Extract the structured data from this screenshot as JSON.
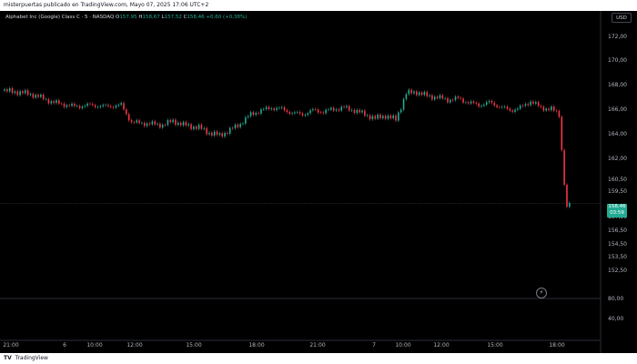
{
  "header": {
    "text": "misterpuertas publicado en TradingView.com, Mayo 07, 2025 17:06 UTC+2"
  },
  "symbol": {
    "name": "Alphabet Inc (Google) Class C · 5 · NASDAQ",
    "o_label": "O",
    "o": "157,95",
    "h_label": "H",
    "h": "158,67",
    "l_label": "L",
    "l": "157,52",
    "c_label": "C",
    "c": "158,46",
    "change": "+0,60 (+0,38%)"
  },
  "currency": "USD",
  "price_tag": {
    "price": "158,46",
    "countdown": "03:59"
  },
  "footer": {
    "logo": "TV",
    "brand": "TradingView"
  },
  "colors": {
    "up": "#22ab94",
    "down": "#f23645",
    "bg": "#000000",
    "text": "#b2b5be",
    "grid": "#1e222d"
  },
  "chart_data": {
    "type": "candlestick",
    "price_axis_labels": [
      "172,00",
      "170,00",
      "168,00",
      "166,00",
      "164,00",
      "162,00",
      "160,50",
      "159,50",
      "157,50",
      "156,50",
      "154,50",
      "153,50",
      "152,50",
      "80,00",
      "40,00"
    ],
    "time_axis_labels": [
      "21:00",
      "6",
      "10:00",
      "12:00",
      "15:00",
      "18:00",
      "21:00",
      "7",
      "10:00",
      "12:00",
      "15:00",
      "18:00"
    ],
    "ylim": [
      151.5,
      172.5
    ],
    "last_price": 158.46,
    "price_series": [
      {
        "t": 0,
        "p": 167.0
      },
      {
        "t": 6,
        "p": 166.9
      },
      {
        "t": 12,
        "p": 166.7
      },
      {
        "t": 16,
        "p": 166.4
      },
      {
        "t": 20,
        "p": 166.1
      },
      {
        "t": 28,
        "p": 165.8
      },
      {
        "t": 34,
        "p": 165.9
      },
      {
        "t": 40,
        "p": 165.8
      },
      {
        "t": 46,
        "p": 165.9
      },
      {
        "t": 50,
        "p": 164.6
      },
      {
        "t": 56,
        "p": 164.5
      },
      {
        "t": 62,
        "p": 164.4
      },
      {
        "t": 66,
        "p": 164.7
      },
      {
        "t": 70,
        "p": 164.4
      },
      {
        "t": 76,
        "p": 164.2
      },
      {
        "t": 80,
        "p": 163.8
      },
      {
        "t": 84,
        "p": 163.6
      },
      {
        "t": 88,
        "p": 164.0
      },
      {
        "t": 92,
        "p": 164.5
      },
      {
        "t": 96,
        "p": 165.2
      },
      {
        "t": 100,
        "p": 165.5
      },
      {
        "t": 104,
        "p": 165.7
      },
      {
        "t": 108,
        "p": 165.6
      },
      {
        "t": 112,
        "p": 165.3
      },
      {
        "t": 116,
        "p": 165.2
      },
      {
        "t": 120,
        "p": 165.5
      },
      {
        "t": 124,
        "p": 165.4
      },
      {
        "t": 128,
        "p": 165.6
      },
      {
        "t": 132,
        "p": 165.7
      },
      {
        "t": 136,
        "p": 165.5
      },
      {
        "t": 140,
        "p": 165.2
      },
      {
        "t": 144,
        "p": 164.9
      },
      {
        "t": 148,
        "p": 165.1
      },
      {
        "t": 152,
        "p": 164.8
      },
      {
        "t": 156,
        "p": 166.8
      },
      {
        "t": 160,
        "p": 166.9
      },
      {
        "t": 164,
        "p": 166.6
      },
      {
        "t": 168,
        "p": 166.5
      },
      {
        "t": 172,
        "p": 166.3
      },
      {
        "t": 176,
        "p": 166.4
      },
      {
        "t": 180,
        "p": 166.1
      },
      {
        "t": 184,
        "p": 165.9
      },
      {
        "t": 188,
        "p": 166.1
      },
      {
        "t": 192,
        "p": 165.8
      },
      {
        "t": 196,
        "p": 165.5
      },
      {
        "t": 200,
        "p": 165.7
      },
      {
        "t": 204,
        "p": 166.2
      },
      {
        "t": 208,
        "p": 165.7
      },
      {
        "t": 212,
        "p": 165.6
      },
      {
        "t": 215,
        "p": 165.2
      },
      {
        "t": 216,
        "p": 162.5
      },
      {
        "t": 217,
        "p": 160.0
      },
      {
        "t": 218,
        "p": 158.0
      },
      {
        "t": 219,
        "p": 158.46
      }
    ],
    "t_range": [
      0,
      230
    ]
  }
}
